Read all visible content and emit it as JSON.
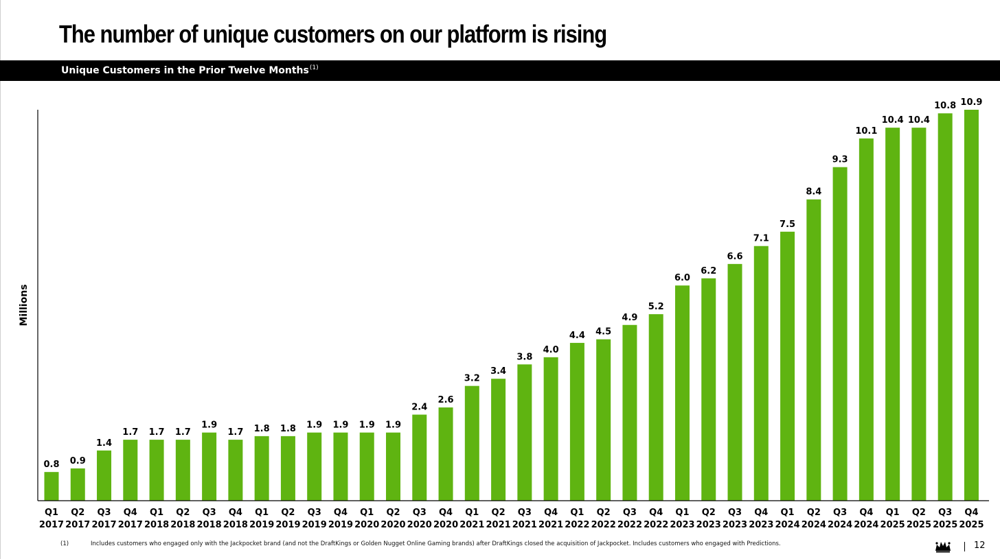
{
  "slide": {
    "title": "The number of unique customers on our platform is rising",
    "subtitle": "Unique Customers in the Prior Twelve Months",
    "subtitle_note_marker": "(1)",
    "footnote_marker": "(1)",
    "footnote_text": "Includes customers who engaged only with the Jackpocket brand (and not the DraftKings or Golden Nugget Online Gaming brands) after DraftKings closed the acquisition of Jackpocket. Includes customers who engaged with Predictions.",
    "page_number": "12",
    "logo_icon": "crown-logo-icon"
  },
  "colors": {
    "bar": "#5fb411",
    "header_bar": "#000000",
    "text": "#000000"
  },
  "chart_data": {
    "type": "bar",
    "title": "Unique Customers in the Prior Twelve Months",
    "xlabel": "",
    "ylabel": "Millions",
    "ylim": [
      0,
      10.9
    ],
    "grid": false,
    "legend": "none",
    "categories": [
      {
        "quarter": "Q1",
        "year": "2017"
      },
      {
        "quarter": "Q2",
        "year": "2017"
      },
      {
        "quarter": "Q3",
        "year": "2017"
      },
      {
        "quarter": "Q4",
        "year": "2017"
      },
      {
        "quarter": "Q1",
        "year": "2018"
      },
      {
        "quarter": "Q2",
        "year": "2018"
      },
      {
        "quarter": "Q3",
        "year": "2018"
      },
      {
        "quarter": "Q4",
        "year": "2018"
      },
      {
        "quarter": "Q1",
        "year": "2019"
      },
      {
        "quarter": "Q2",
        "year": "2019"
      },
      {
        "quarter": "Q3",
        "year": "2019"
      },
      {
        "quarter": "Q4",
        "year": "2019"
      },
      {
        "quarter": "Q1",
        "year": "2020"
      },
      {
        "quarter": "Q2",
        "year": "2020"
      },
      {
        "quarter": "Q3",
        "year": "2020"
      },
      {
        "quarter": "Q4",
        "year": "2020"
      },
      {
        "quarter": "Q1",
        "year": "2021"
      },
      {
        "quarter": "Q2",
        "year": "2021"
      },
      {
        "quarter": "Q3",
        "year": "2021"
      },
      {
        "quarter": "Q4",
        "year": "2021"
      },
      {
        "quarter": "Q1",
        "year": "2022"
      },
      {
        "quarter": "Q2",
        "year": "2022"
      },
      {
        "quarter": "Q3",
        "year": "2022"
      },
      {
        "quarter": "Q4",
        "year": "2022"
      },
      {
        "quarter": "Q1",
        "year": "2023"
      },
      {
        "quarter": "Q2",
        "year": "2023"
      },
      {
        "quarter": "Q3",
        "year": "2023"
      },
      {
        "quarter": "Q4",
        "year": "2023"
      },
      {
        "quarter": "Q1",
        "year": "2024"
      },
      {
        "quarter": "Q2",
        "year": "2024"
      },
      {
        "quarter": "Q3",
        "year": "2024"
      },
      {
        "quarter": "Q4",
        "year": "2024"
      },
      {
        "quarter": "Q1",
        "year": "2025"
      },
      {
        "quarter": "Q2",
        "year": "2025"
      },
      {
        "quarter": "Q3",
        "year": "2025"
      },
      {
        "quarter": "Q4",
        "year": "2025"
      }
    ],
    "values": [
      0.8,
      0.9,
      1.4,
      1.7,
      1.7,
      1.7,
      1.9,
      1.7,
      1.8,
      1.8,
      1.9,
      1.9,
      1.9,
      1.9,
      2.4,
      2.6,
      3.2,
      3.4,
      3.8,
      4.0,
      4.4,
      4.5,
      4.9,
      5.2,
      6.0,
      6.2,
      6.6,
      7.1,
      7.5,
      8.4,
      9.3,
      10.1,
      10.4,
      10.4,
      10.8,
      10.9
    ],
    "data_labels": [
      "0.8",
      "0.9",
      "1.4",
      "1.7",
      "1.7",
      "1.7",
      "1.9",
      "1.7",
      "1.8",
      "1.8",
      "1.9",
      "1.9",
      "1.9",
      "1.9",
      "2.4",
      "2.6",
      "3.2",
      "3.4",
      "3.8",
      "4.0",
      "4.4",
      "4.5",
      "4.9",
      "5.2",
      "6.0",
      "6.2",
      "6.6",
      "7.1",
      "7.5",
      "8.4",
      "9.3",
      "10.1",
      "10.4",
      "10.4",
      "10.8",
      "10.9"
    ]
  }
}
